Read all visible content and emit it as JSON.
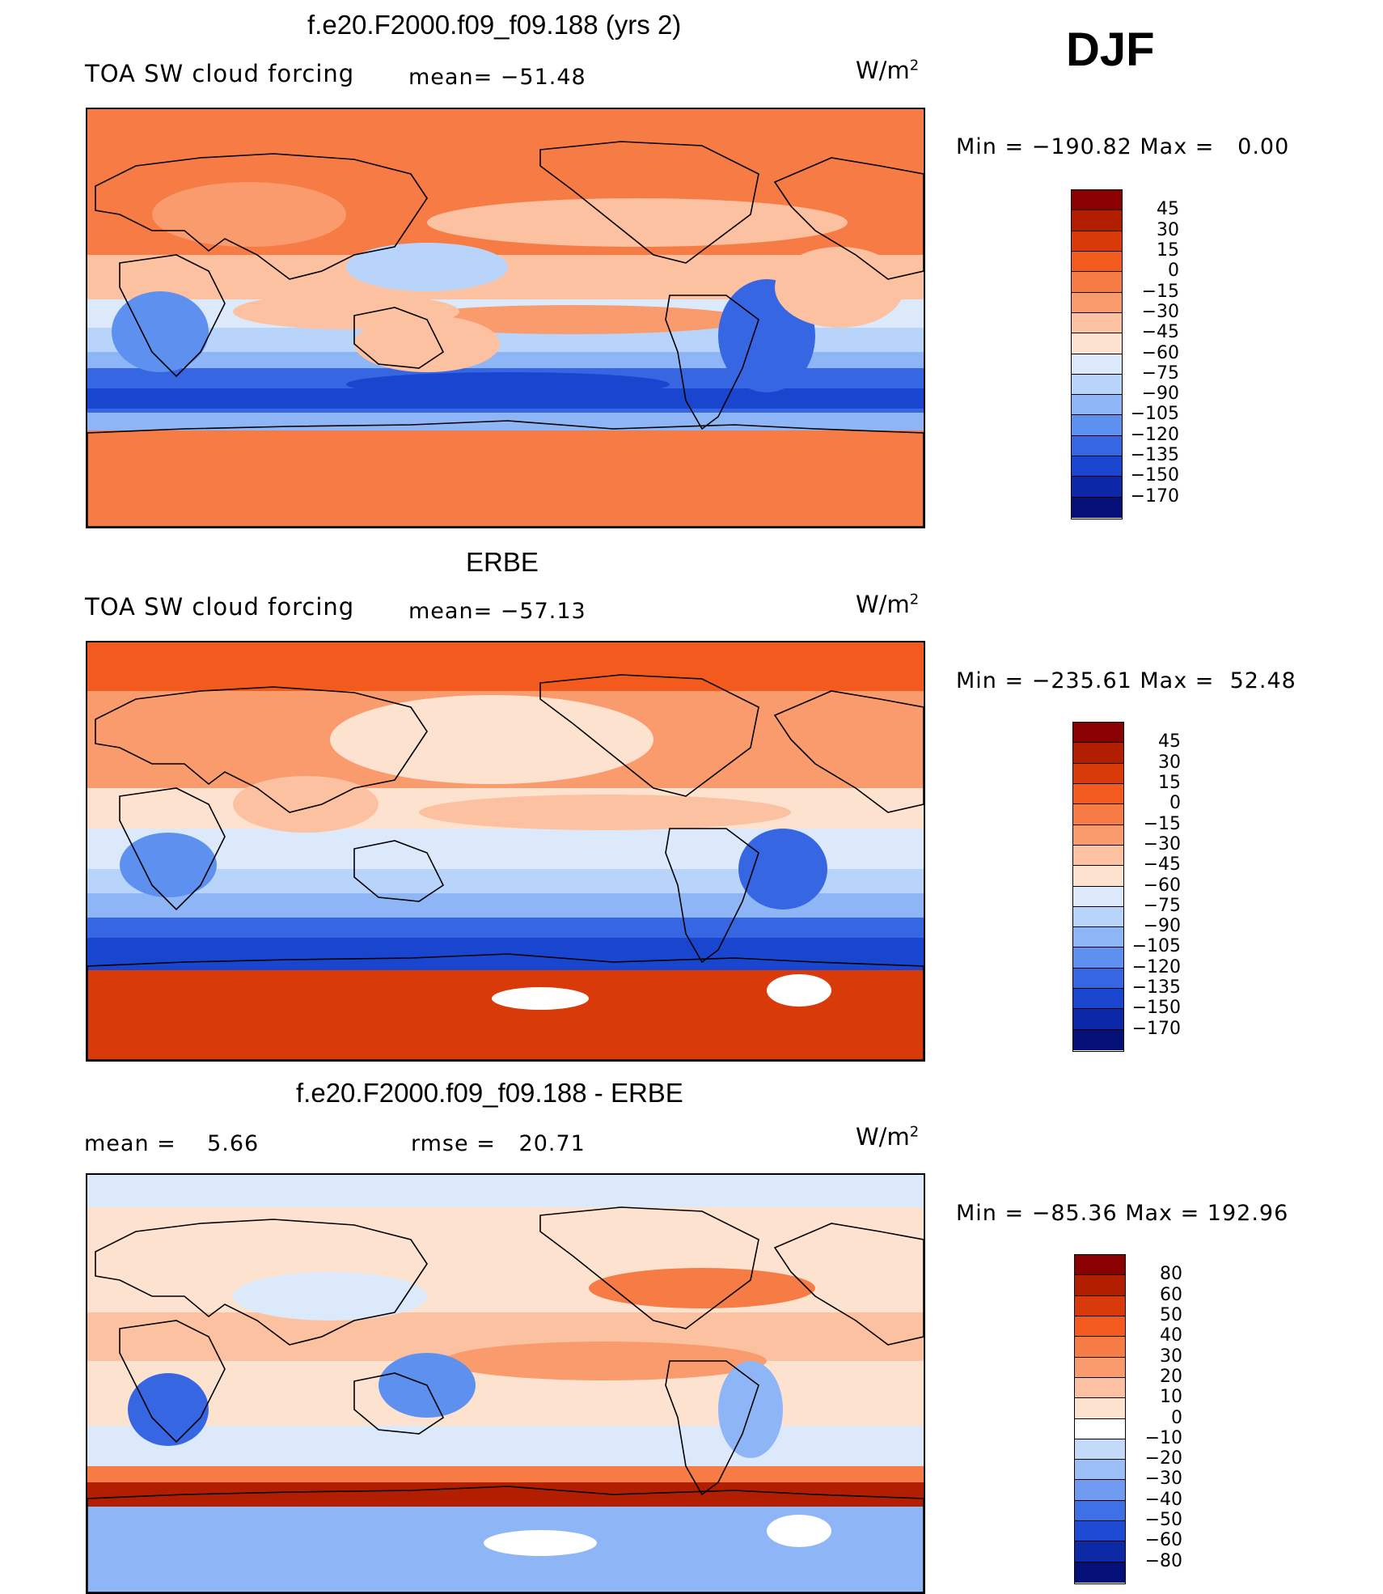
{
  "season": "DJF",
  "panels": [
    {
      "title": "f.e20.F2000.f09_f09.188 (yrs 2)",
      "left_label": "TOA SW cloud forcing",
      "center_label": "mean= −51.48",
      "units_base": "W/m",
      "units_exp": "2",
      "minmax": "Min = −190.82 Max =   0.00",
      "map_style": "model",
      "colorbar": {
        "labels": [
          "45",
          "30",
          "15",
          "0",
          "−15",
          "−30",
          "−45",
          "−60",
          "−75",
          "−90",
          "−105",
          "−120",
          "−135",
          "−150",
          "−170"
        ],
        "colors": [
          "#8b0000",
          "#b21e00",
          "#d93a0a",
          "#f25a1e",
          "#f77b45",
          "#fa9b6e",
          "#fcc1a0",
          "#fde3cf",
          "#dbe9fb",
          "#b9d4fb",
          "#8eb6f7",
          "#5e90ef",
          "#3766e3",
          "#1a45cf",
          "#0c28a8",
          "#050f78"
        ]
      }
    },
    {
      "title": "ERBE",
      "left_label": "TOA SW cloud forcing",
      "center_label": "mean= −57.13",
      "units_base": "W/m",
      "units_exp": "2",
      "minmax": "Min = −235.61 Max =  52.48",
      "map_style": "obs",
      "colorbar": {
        "labels": [
          "45",
          "30",
          "15",
          "0",
          "−15",
          "−30",
          "−45",
          "−60",
          "−75",
          "−90",
          "−105",
          "−120",
          "−135",
          "−150",
          "−170"
        ],
        "colors": [
          "#8b0000",
          "#b21e00",
          "#d93a0a",
          "#f25a1e",
          "#f77b45",
          "#fa9b6e",
          "#fcc1a0",
          "#fde3cf",
          "#dbe9fb",
          "#b9d4fb",
          "#8eb6f7",
          "#5e90ef",
          "#3766e3",
          "#1a45cf",
          "#0c28a8",
          "#050f78"
        ]
      }
    },
    {
      "title": "f.e20.F2000.f09_f09.188 - ERBE",
      "left_label": "mean =    5.66",
      "center_label": "rmse =   20.71",
      "units_base": "W/m",
      "units_exp": "2",
      "minmax": "Min = −85.36 Max = 192.96",
      "map_style": "diff",
      "colorbar": {
        "labels": [
          "80",
          "60",
          "50",
          "40",
          "30",
          "20",
          "10",
          "0",
          "−10",
          "−20",
          "−30",
          "−40",
          "−50",
          "−60",
          "−80"
        ],
        "colors": [
          "#8b0000",
          "#b21e00",
          "#d93a0a",
          "#f25a1e",
          "#f77b45",
          "#fa9b6e",
          "#fcc1a0",
          "#fde3cf",
          "#ffffff",
          "#c4daf9",
          "#9cbef6",
          "#6f9cf0",
          "#3f71e6",
          "#1f4ad4",
          "#0d2aa6",
          "#050f78"
        ]
      }
    }
  ]
}
